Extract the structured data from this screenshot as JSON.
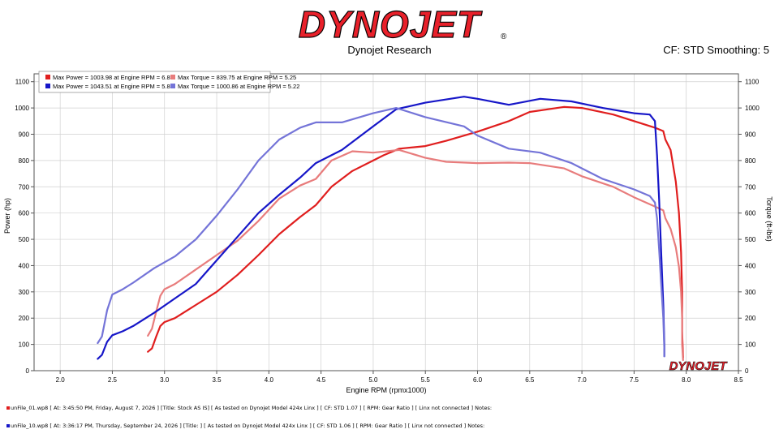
{
  "brand": {
    "logo_text": "DYNOJET",
    "registered": "®",
    "watermark": "DYNOJET"
  },
  "header": {
    "subtitle": "Dynojet Research",
    "cf_info": "CF: STD Smoothing: 5"
  },
  "colors": {
    "run1": "#e01e1e",
    "run1_light": "#e87c7c",
    "run2": "#1616c8",
    "run2_light": "#7474d8",
    "grid": "#d0d0d0"
  },
  "chart_data": {
    "type": "line",
    "xlabel": "Engine RPM (rpmx1000)",
    "ylabel_left": "Power (hp)",
    "ylabel_right": "Torque (ft-lbs)",
    "xlim": [
      1.75,
      8.5
    ],
    "ylim": [
      0,
      1130
    ],
    "x_ticks": [
      "2.0",
      "2.5",
      "3.0",
      "3.5",
      "4.0",
      "4.5",
      "5.0",
      "5.5",
      "6.0",
      "6.5",
      "7.0",
      "7.5",
      "8.0",
      "8.5"
    ],
    "y_ticks": [
      "0",
      "100",
      "200",
      "300",
      "400",
      "500",
      "600",
      "700",
      "800",
      "900",
      "1000",
      "1100"
    ],
    "grid": true,
    "legend_position": "top-left",
    "legend": [
      {
        "text": "Max Power = 1003.98 at Engine RPM = 6.83",
        "series": "run1_power"
      },
      {
        "text": "Max Torque = 839.75 at Engine RPM = 5.25",
        "series": "run1_torque"
      },
      {
        "text": "Max Power = 1043.51 at Engine RPM = 5.87",
        "series": "run2_power"
      },
      {
        "text": "Max Torque = 1000.86 at Engine RPM = 5.22",
        "series": "run2_torque"
      }
    ],
    "series": [
      {
        "id": "run1_power",
        "color": "#e01e1e",
        "points": [
          [
            2.84,
            72
          ],
          [
            2.88,
            85
          ],
          [
            2.92,
            130
          ],
          [
            2.96,
            170
          ],
          [
            3.0,
            185
          ],
          [
            3.1,
            200
          ],
          [
            3.3,
            250
          ],
          [
            3.5,
            300
          ],
          [
            3.7,
            365
          ],
          [
            3.9,
            440
          ],
          [
            4.1,
            520
          ],
          [
            4.3,
            585
          ],
          [
            4.45,
            630
          ],
          [
            4.6,
            700
          ],
          [
            4.8,
            760
          ],
          [
            5.0,
            800
          ],
          [
            5.1,
            820
          ],
          [
            5.25,
            845
          ],
          [
            5.5,
            855
          ],
          [
            5.7,
            875
          ],
          [
            6.0,
            910
          ],
          [
            6.3,
            950
          ],
          [
            6.5,
            985
          ],
          [
            6.83,
            1004
          ],
          [
            7.0,
            1000
          ],
          [
            7.3,
            975
          ],
          [
            7.5,
            950
          ],
          [
            7.7,
            925
          ],
          [
            7.78,
            912
          ],
          [
            7.8,
            880
          ],
          [
            7.85,
            840
          ],
          [
            7.9,
            720
          ],
          [
            7.93,
            600
          ],
          [
            7.95,
            450
          ],
          [
            7.96,
            300
          ],
          [
            7.96,
            150
          ],
          [
            7.97,
            50
          ]
        ]
      },
      {
        "id": "run1_torque",
        "color": "#e87c7c",
        "points": [
          [
            2.84,
            133
          ],
          [
            2.88,
            160
          ],
          [
            2.92,
            225
          ],
          [
            2.96,
            285
          ],
          [
            3.0,
            310
          ],
          [
            3.1,
            330
          ],
          [
            3.3,
            385
          ],
          [
            3.5,
            440
          ],
          [
            3.7,
            495
          ],
          [
            3.9,
            570
          ],
          [
            4.1,
            655
          ],
          [
            4.3,
            705
          ],
          [
            4.45,
            730
          ],
          [
            4.6,
            800
          ],
          [
            4.8,
            835
          ],
          [
            5.0,
            830
          ],
          [
            5.25,
            840
          ],
          [
            5.5,
            810
          ],
          [
            5.7,
            795
          ],
          [
            6.0,
            790
          ],
          [
            6.3,
            792
          ],
          [
            6.5,
            790
          ],
          [
            6.83,
            770
          ],
          [
            7.0,
            740
          ],
          [
            7.3,
            700
          ],
          [
            7.5,
            660
          ],
          [
            7.7,
            625
          ],
          [
            7.78,
            610
          ],
          [
            7.8,
            580
          ],
          [
            7.85,
            540
          ],
          [
            7.9,
            470
          ],
          [
            7.93,
            395
          ],
          [
            7.95,
            300
          ],
          [
            7.96,
            200
          ],
          [
            7.96,
            100
          ],
          [
            7.97,
            40
          ]
        ]
      },
      {
        "id": "run2_power",
        "color": "#1616c8",
        "points": [
          [
            2.36,
            45
          ],
          [
            2.4,
            60
          ],
          [
            2.45,
            110
          ],
          [
            2.5,
            135
          ],
          [
            2.6,
            150
          ],
          [
            2.7,
            170
          ],
          [
            2.9,
            220
          ],
          [
            3.1,
            275
          ],
          [
            3.3,
            330
          ],
          [
            3.5,
            420
          ],
          [
            3.7,
            510
          ],
          [
            3.9,
            600
          ],
          [
            4.1,
            670
          ],
          [
            4.3,
            735
          ],
          [
            4.45,
            790
          ],
          [
            4.7,
            840
          ],
          [
            5.0,
            930
          ],
          [
            5.22,
            995
          ],
          [
            5.5,
            1020
          ],
          [
            5.87,
            1043
          ],
          [
            6.0,
            1035
          ],
          [
            6.3,
            1012
          ],
          [
            6.6,
            1035
          ],
          [
            6.9,
            1025
          ],
          [
            7.2,
            1000
          ],
          [
            7.5,
            980
          ],
          [
            7.65,
            975
          ],
          [
            7.7,
            950
          ],
          [
            7.72,
            820
          ],
          [
            7.74,
            650
          ],
          [
            7.76,
            450
          ],
          [
            7.78,
            250
          ],
          [
            7.79,
            100
          ],
          [
            7.79,
            55
          ]
        ]
      },
      {
        "id": "run2_torque",
        "color": "#7474d8",
        "points": [
          [
            2.36,
            105
          ],
          [
            2.4,
            130
          ],
          [
            2.45,
            230
          ],
          [
            2.5,
            290
          ],
          [
            2.6,
            310
          ],
          [
            2.7,
            335
          ],
          [
            2.9,
            390
          ],
          [
            3.1,
            435
          ],
          [
            3.3,
            500
          ],
          [
            3.5,
            590
          ],
          [
            3.7,
            690
          ],
          [
            3.9,
            800
          ],
          [
            4.1,
            880
          ],
          [
            4.3,
            925
          ],
          [
            4.45,
            945
          ],
          [
            4.7,
            945
          ],
          [
            5.0,
            980
          ],
          [
            5.22,
            1000
          ],
          [
            5.5,
            965
          ],
          [
            5.87,
            930
          ],
          [
            6.0,
            895
          ],
          [
            6.3,
            845
          ],
          [
            6.6,
            830
          ],
          [
            6.9,
            790
          ],
          [
            7.2,
            730
          ],
          [
            7.5,
            690
          ],
          [
            7.65,
            665
          ],
          [
            7.7,
            640
          ],
          [
            7.72,
            580
          ],
          [
            7.74,
            460
          ],
          [
            7.76,
            330
          ],
          [
            7.78,
            200
          ],
          [
            7.79,
            80
          ],
          [
            7.79,
            55
          ]
        ]
      }
    ]
  },
  "footer": {
    "run1": "unFile_01.wp8 [ At: 3:45:50 PM, Friday, August 7, 2026 ] [Title: Stock AS IS]  [ As tested on Dynojet Model 424x Linx ] [ CF: STD 1.07 ] [ RPM: Gear Ratio ] [ Linx not connected ] Notes:",
    "run2": "unFile_10.wp8 [ At: 3:36:17 PM, Thursday, September 24, 2026 ] [Title: ]  [ As tested on Dynojet Model 424x Linx ] [ CF: STD 1.06 ] [ RPM: Gear Ratio ] [ Linx not connected ] Notes:"
  }
}
